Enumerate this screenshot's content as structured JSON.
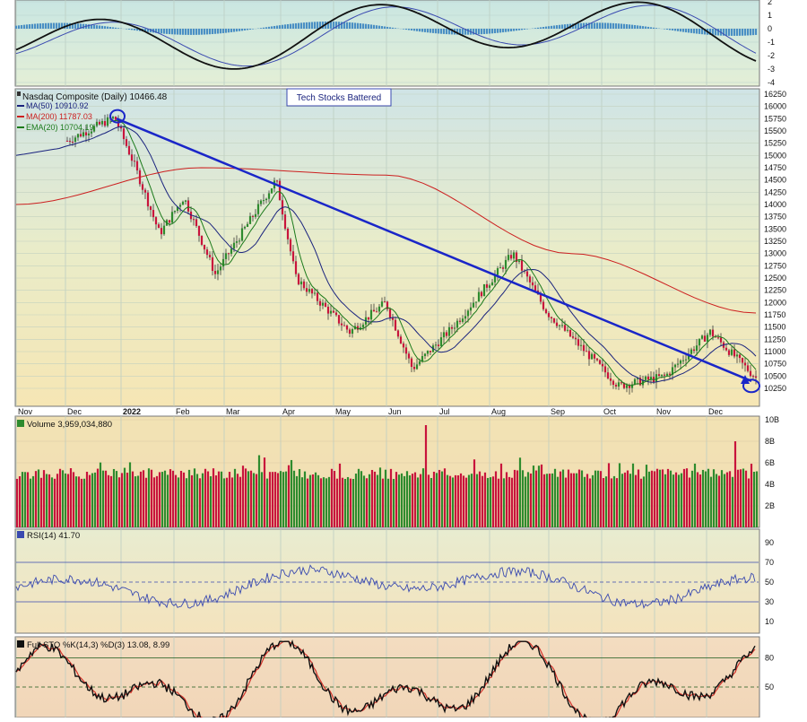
{
  "chart_data": {
    "type": "line",
    "title": "Nasdaq Composite (Daily) 10466.48",
    "annotation": "Tech Stocks Battered",
    "x_months": [
      "Nov",
      "Dec",
      "2022",
      "Feb",
      "Mar",
      "Apr",
      "May",
      "Jun",
      "Jul",
      "Aug",
      "Sep",
      "Oct",
      "Nov",
      "Dec"
    ],
    "price_panel": {
      "ylim": [
        10000,
        16250
      ],
      "y_ticks": [
        "16250",
        "16000",
        "15750",
        "15500",
        "15250",
        "15000",
        "14750",
        "14500",
        "14250",
        "14000",
        "13750",
        "13500",
        "13250",
        "13000",
        "12750",
        "12500",
        "12250",
        "12000",
        "11750",
        "11500",
        "11250",
        "11000",
        "10750",
        "10500",
        "10250"
      ],
      "legend": [
        {
          "label": "MA(50) 10910.92",
          "color": "#1a237e"
        },
        {
          "label": "MA(200) 11787.03",
          "color": "#cc1f1f"
        },
        {
          "label": "EMA(20) 10704.19",
          "color": "#1b7a1b"
        }
      ],
      "close_keypoints": [
        {
          "x": "Dec 2021",
          "y": 15300
        },
        {
          "x": "Late Dec 2021",
          "y": 15780
        },
        {
          "x": "Mid Jan 2022",
          "y": 14800
        },
        {
          "x": "Late Jan 2022",
          "y": 13400
        },
        {
          "x": "Early Feb 2022",
          "y": 14150
        },
        {
          "x": "Mid Mar 2022",
          "y": 12580
        },
        {
          "x": "Early Apr 2022",
          "y": 14500
        },
        {
          "x": "Late Apr 2022",
          "y": 12500
        },
        {
          "x": "Mid May 2022",
          "y": 11400
        },
        {
          "x": "Early Jun 2022",
          "y": 12000
        },
        {
          "x": "Mid Jun 2022",
          "y": 10650
        },
        {
          "x": "Early Jul 2022",
          "y": 11500
        },
        {
          "x": "Mid Aug 2022",
          "y": 13000
        },
        {
          "x": "Early Sep 2022",
          "y": 11800
        },
        {
          "x": "Mid Oct 2022",
          "y": 10300
        },
        {
          "x": "Early Nov 2022",
          "y": 10500
        },
        {
          "x": "Late Nov 2022",
          "y": 11400
        },
        {
          "x": "Late Dec 2022",
          "y": 10466
        }
      ],
      "ma200_keypoints": [
        [
          0,
          14000
        ],
        [
          0.25,
          14750
        ],
        [
          0.5,
          14600
        ],
        [
          0.75,
          13000
        ],
        [
          1,
          11787
        ]
      ],
      "trendline": {
        "from": "Late Dec 2021 15750",
        "to": "Late Dec 2022 10400"
      }
    },
    "volume_panel": {
      "label": "Volume 3,959,034,880",
      "ylim": [
        0,
        10
      ],
      "y_ticks": [
        "10B",
        "8B",
        "6B",
        "4B",
        "2B"
      ],
      "typical_values_billions": [
        4.5,
        5.5
      ],
      "spikes_billions": [
        {
          "x": "Mid Jun 2022",
          "value": 9.5
        },
        {
          "x": "Late Dec 2022",
          "value": 8.0
        }
      ]
    },
    "rsi_panel": {
      "label": "RSI(14) 41.70",
      "ylim": [
        0,
        100
      ],
      "y_ticks": [
        "90",
        "70",
        "50",
        "30",
        "10"
      ],
      "reference_lines": [
        70,
        50,
        30
      ]
    },
    "sto_panel": {
      "label": "Full STO %K(14,3) %D(3) 13.08, 8.99",
      "y_ticks": [
        "80",
        "50"
      ],
      "reference_lines": [
        80,
        50
      ]
    },
    "macd_panel": {
      "y_ticks": [
        "2",
        "1",
        "0",
        "-1",
        "-2",
        "-3",
        "-4"
      ]
    }
  },
  "colors": {
    "up": "#2e8b2e",
    "down": "#c8143c",
    "price_bg_top": "#cfe4e6",
    "price_bg_bottom": "#f6e6b4",
    "trendline": "#1a26c8",
    "grid": "#b7c9bf"
  }
}
